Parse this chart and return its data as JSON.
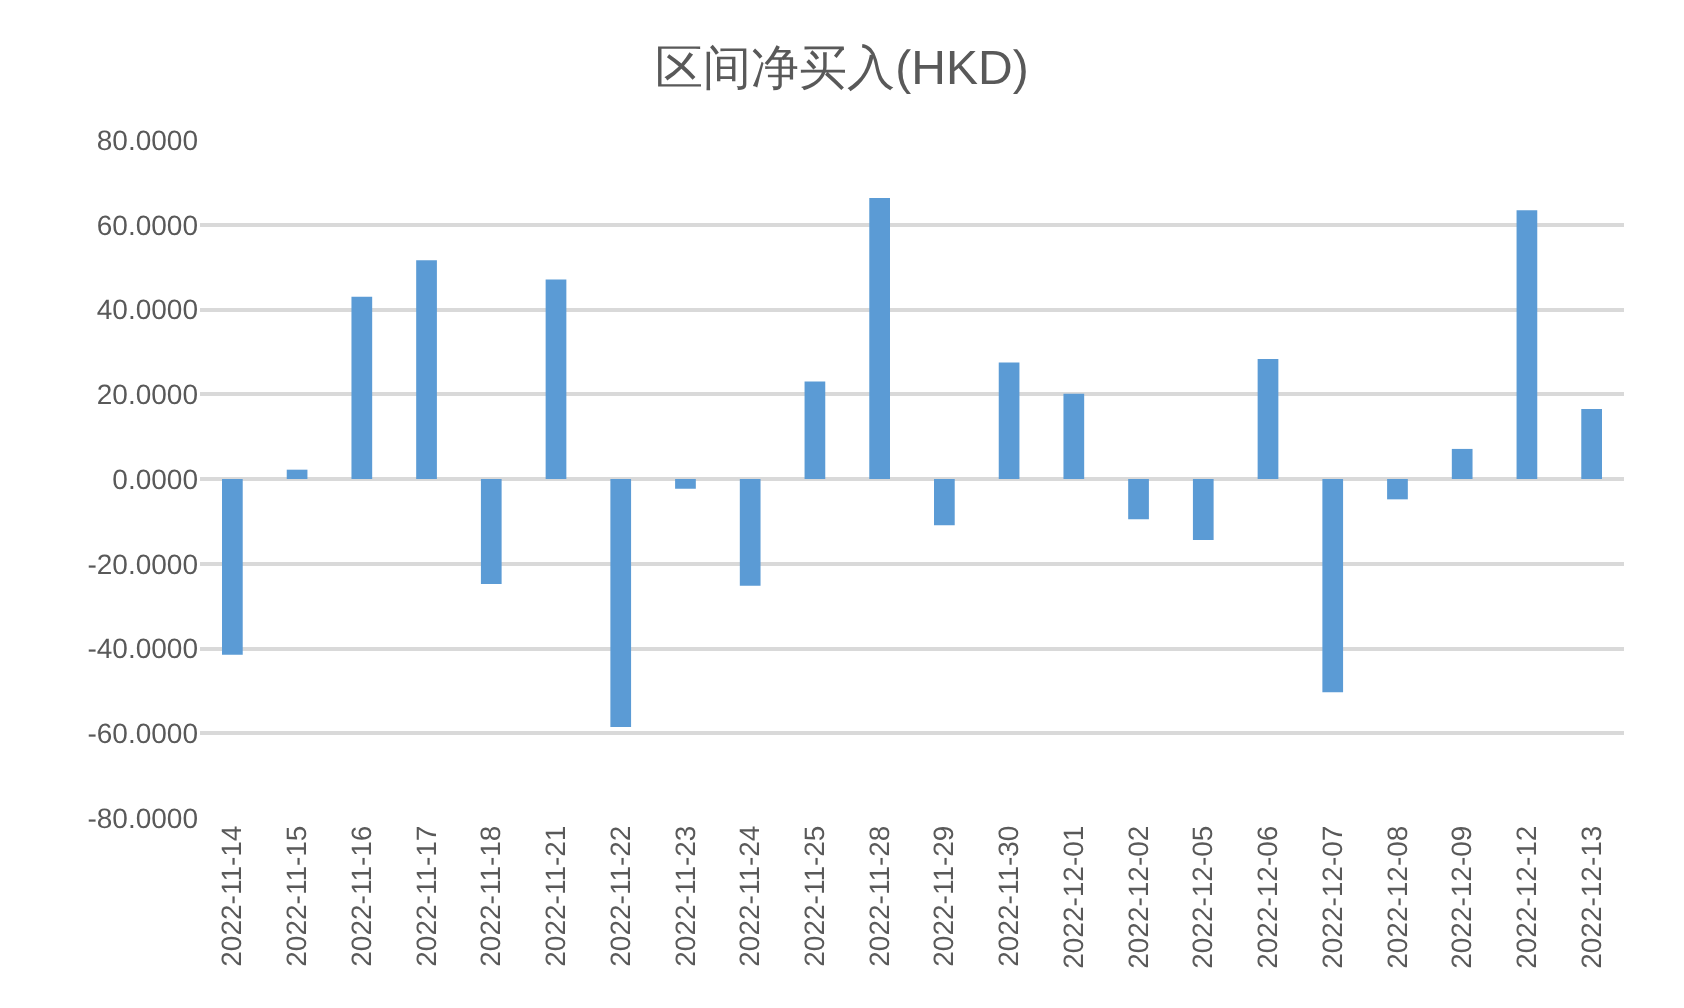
{
  "chart_data": {
    "type": "bar",
    "title": "区间净买入(HKD)",
    "categories": [
      "2022-11-14",
      "2022-11-15",
      "2022-11-16",
      "2022-11-17",
      "2022-11-18",
      "2022-11-21",
      "2022-11-22",
      "2022-11-23",
      "2022-11-24",
      "2022-11-25",
      "2022-11-28",
      "2022-11-29",
      "2022-11-30",
      "2022-12-01",
      "2022-12-02",
      "2022-12-05",
      "2022-12-06",
      "2022-12-07",
      "2022-12-08",
      "2022-12-09",
      "2022-12-12",
      "2022-12-13"
    ],
    "values": [
      -41.5,
      2.2,
      43.0,
      51.6,
      -24.8,
      47.1,
      -58.5,
      -2.3,
      -25.2,
      23.0,
      66.3,
      -10.9,
      27.5,
      20.1,
      -9.5,
      -14.4,
      28.3,
      -50.3,
      -4.8,
      7.1,
      63.4,
      16.5
    ],
    "color": "#5b9bd5",
    "ylim": [
      -80,
      80
    ],
    "yticks": [
      {
        "value": -80,
        "label": "-80.0000"
      },
      {
        "value": -60,
        "label": "-60.0000"
      },
      {
        "value": -40,
        "label": "-40.0000"
      },
      {
        "value": -20,
        "label": "-20.0000"
      },
      {
        "value": 0,
        "label": "0.0000"
      },
      {
        "value": 20,
        "label": "20.0000"
      },
      {
        "value": 40,
        "label": "40.0000"
      },
      {
        "value": 60,
        "label": "60.0000"
      },
      {
        "value": 80,
        "label": "80.0000"
      }
    ],
    "grid": "y",
    "legend": false
  }
}
